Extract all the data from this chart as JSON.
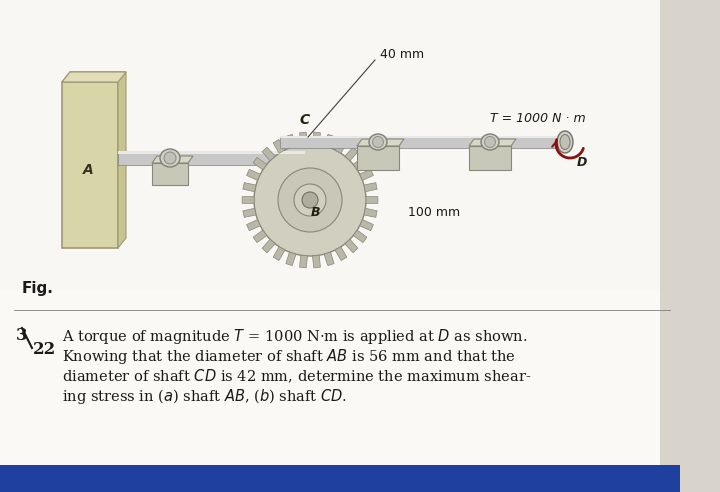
{
  "bg_color": "#f0eeea",
  "bg_top_color": "#f5f3ef",
  "bg_bottom_color": "#f8f7f5",
  "fig_label": "Fig.",
  "problem_text_line1": "A torque of magnitude T = 1000 N·m is applied at D as shown.",
  "problem_text_line2": "Knowing that the diameter of shaft AB is 56 mm and that the",
  "problem_text_line3": "diameter of shaft CD is 42 mm, determine the maximum shear-",
  "problem_text_line4": "ing stress in (a) shaft AB, (b) shaft CD.",
  "label_40mm": "40 mm",
  "label_100mm": "100 mm",
  "label_T": "T = 1000 N · m",
  "label_A": "A",
  "label_B": "B",
  "label_C": "C",
  "label_D": "D",
  "wall_face_color": "#d8d5a8",
  "wall_side_color": "#c8c490",
  "wall_edge_color": "#a09878",
  "shaft_main_color": "#c8c8c8",
  "shaft_highlight_color": "#e8e8e8",
  "shaft_shadow_color": "#909090",
  "gear_body_color": "#d0cfc0",
  "gear_tooth_color": "#b8b7a8",
  "gear_edge_color": "#888878",
  "bearing_block_color": "#c8c8b8",
  "bearing_block_dark": "#a8a898",
  "bearing_top_color": "#d8d8c8",
  "torque_color": "#8b1010",
  "text_color": "#1a1a1a",
  "dim_line_color": "#404040",
  "divider_color": "#808080"
}
